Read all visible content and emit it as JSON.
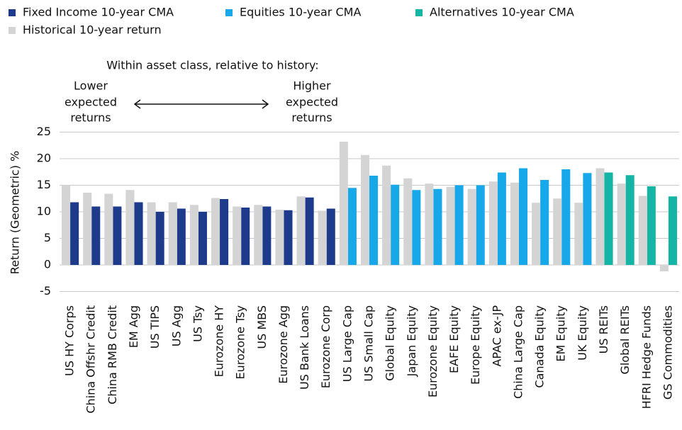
{
  "chart_data": {
    "type": "bar",
    "y_label": "Return (Geometric) %",
    "annotation": "Within asset class, relative to history:",
    "left_note": [
      "Lower",
      "expected",
      "returns"
    ],
    "right_note": [
      "Higher",
      "expected",
      "returns"
    ],
    "categories": [
      "US HY Corps",
      "China Offshr Credit",
      "China RMB Credit",
      "EM Agg",
      "US TIPS",
      "US Agg",
      "US Tsy",
      "Eurozone HY",
      "Eurozone Tsy",
      "US MBS",
      "Eurozone Agg",
      "US Bank Loans",
      "Eurozone Corp",
      "US Large Cap",
      "US Small Cap",
      "Global Equity",
      "Japan Equity",
      "Eurozone Equity",
      "EAFE Equity",
      "Europe Equity",
      "APAC ex-JP",
      "China Large Cap",
      "Canada Equity",
      "EM Equity",
      "UK Equity",
      "US REITs",
      "Global REITs",
      "HFRI Hedge Funds",
      "GS Commodities"
    ],
    "series": [
      {
        "name": "Fixed Income 10-year CMA",
        "color": "#1e3a8a",
        "values": [
          11.8,
          11.0,
          11.0,
          11.8,
          10.0,
          10.6,
          10.0,
          12.4,
          10.8,
          11.0,
          10.3,
          12.7,
          10.6,
          null,
          null,
          null,
          null,
          null,
          null,
          null,
          null,
          null,
          null,
          null,
          null,
          null,
          null,
          null,
          null
        ]
      },
      {
        "name": "Equities 10-year CMA",
        "color": "#16a8e8",
        "values": [
          null,
          null,
          null,
          null,
          null,
          null,
          null,
          null,
          null,
          null,
          null,
          null,
          null,
          14.5,
          16.8,
          15.1,
          14.1,
          14.3,
          15.0,
          15.0,
          17.4,
          18.2,
          16.0,
          18.0,
          17.3,
          null,
          null,
          null,
          null
        ]
      },
      {
        "name": "Alternatives 10-year CMA",
        "color": "#14b5a5",
        "values": [
          null,
          null,
          null,
          null,
          null,
          null,
          null,
          null,
          null,
          null,
          null,
          null,
          null,
          null,
          null,
          null,
          null,
          null,
          null,
          null,
          null,
          null,
          null,
          null,
          null,
          17.4,
          16.9,
          14.8,
          12.9
        ]
      },
      {
        "name": "Historical 10-year return",
        "color": "#d4d4d4",
        "values": [
          15.0,
          13.6,
          13.4,
          14.1,
          11.8,
          11.8,
          11.3,
          12.6,
          11.0,
          11.3,
          10.4,
          12.9,
          10.2,
          23.2,
          20.7,
          18.7,
          16.3,
          15.3,
          14.7,
          14.3,
          15.7,
          15.5,
          11.7,
          12.5,
          11.7,
          18.2,
          15.3,
          13.0,
          -1.2
        ]
      }
    ],
    "ylim": [
      -7,
      25
    ],
    "yticks": [
      -5,
      0,
      5,
      10,
      15,
      20,
      25
    ],
    "grid": true
  }
}
